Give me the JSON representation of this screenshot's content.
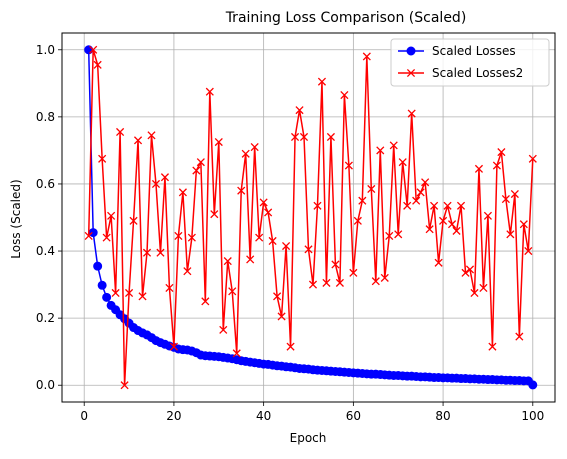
{
  "chart_data": {
    "type": "line",
    "title": "Training Loss Comparison (Scaled)",
    "xlabel": "Epoch",
    "ylabel": "Loss (Scaled)",
    "xlim": [
      -4.95,
      104.95
    ],
    "ylim": [
      -0.05,
      1.05
    ],
    "xticks": [
      0,
      20,
      40,
      60,
      80,
      100
    ],
    "yticks": [
      0.0,
      0.2,
      0.4,
      0.6,
      0.8,
      1.0
    ],
    "grid": true,
    "legend_position": "top-right",
    "series": [
      {
        "name": "Scaled Losses",
        "color": "#0000ff",
        "marker": "circle",
        "x": [
          1,
          2,
          3,
          4,
          5,
          6,
          7,
          8,
          9,
          10,
          11,
          12,
          13,
          14,
          15,
          16,
          17,
          18,
          19,
          20,
          21,
          22,
          23,
          24,
          25,
          26,
          27,
          28,
          29,
          30,
          31,
          32,
          33,
          34,
          35,
          36,
          37,
          38,
          39,
          40,
          41,
          42,
          43,
          44,
          45,
          46,
          47,
          48,
          49,
          50,
          51,
          52,
          53,
          54,
          55,
          56,
          57,
          58,
          59,
          60,
          61,
          62,
          63,
          64,
          65,
          66,
          67,
          68,
          69,
          70,
          71,
          72,
          73,
          74,
          75,
          76,
          77,
          78,
          79,
          80,
          81,
          82,
          83,
          84,
          85,
          86,
          87,
          88,
          89,
          90,
          91,
          92,
          93,
          94,
          95,
          96,
          97,
          98,
          99,
          100
        ],
        "values": [
          1.0,
          0.455,
          0.355,
          0.298,
          0.262,
          0.238,
          0.225,
          0.21,
          0.198,
          0.185,
          0.172,
          0.163,
          0.156,
          0.15,
          0.142,
          0.133,
          0.127,
          0.122,
          0.117,
          0.113,
          0.108,
          0.106,
          0.105,
          0.102,
          0.097,
          0.09,
          0.088,
          0.087,
          0.086,
          0.085,
          0.083,
          0.081,
          0.079,
          0.076,
          0.073,
          0.071,
          0.069,
          0.067,
          0.065,
          0.063,
          0.062,
          0.06,
          0.058,
          0.057,
          0.055,
          0.054,
          0.052,
          0.05,
          0.049,
          0.048,
          0.046,
          0.045,
          0.044,
          0.043,
          0.042,
          0.041,
          0.04,
          0.039,
          0.038,
          0.037,
          0.036,
          0.035,
          0.034,
          0.033,
          0.033,
          0.032,
          0.031,
          0.03,
          0.029,
          0.029,
          0.028,
          0.027,
          0.027,
          0.026,
          0.025,
          0.025,
          0.024,
          0.023,
          0.023,
          0.022,
          0.022,
          0.021,
          0.021,
          0.02,
          0.02,
          0.019,
          0.019,
          0.018,
          0.018,
          0.017,
          0.017,
          0.016,
          0.016,
          0.015,
          0.015,
          0.014,
          0.014,
          0.013,
          0.013,
          0.001
        ]
      },
      {
        "name": "Scaled Losses2",
        "color": "#ff0000",
        "marker": "x",
        "x": [
          1,
          2,
          3,
          4,
          5,
          6,
          7,
          8,
          9,
          10,
          11,
          12,
          13,
          14,
          15,
          16,
          17,
          18,
          19,
          20,
          21,
          22,
          23,
          24,
          25,
          26,
          27,
          28,
          29,
          30,
          31,
          32,
          33,
          34,
          35,
          36,
          37,
          38,
          39,
          40,
          41,
          42,
          43,
          44,
          45,
          46,
          47,
          48,
          49,
          50,
          51,
          52,
          53,
          54,
          55,
          56,
          57,
          58,
          59,
          60,
          61,
          62,
          63,
          64,
          65,
          66,
          67,
          68,
          69,
          70,
          71,
          72,
          73,
          74,
          75,
          76,
          77,
          78,
          79,
          80,
          81,
          82,
          83,
          84,
          85,
          86,
          87,
          88,
          89,
          90,
          91,
          92,
          93,
          94,
          95,
          96,
          97,
          98,
          99,
          100
        ],
        "values": [
          0.445,
          1.0,
          0.955,
          0.675,
          0.44,
          0.505,
          0.275,
          0.755,
          0.0,
          0.275,
          0.49,
          0.73,
          0.265,
          0.395,
          0.745,
          0.6,
          0.395,
          0.62,
          0.29,
          0.115,
          0.445,
          0.575,
          0.34,
          0.44,
          0.64,
          0.665,
          0.25,
          0.875,
          0.51,
          0.725,
          0.165,
          0.37,
          0.28,
          0.095,
          0.58,
          0.69,
          0.375,
          0.71,
          0.44,
          0.545,
          0.515,
          0.43,
          0.265,
          0.205,
          0.415,
          0.115,
          0.74,
          0.82,
          0.74,
          0.405,
          0.3,
          0.535,
          0.905,
          0.305,
          0.74,
          0.36,
          0.305,
          0.865,
          0.655,
          0.335,
          0.49,
          0.55,
          0.98,
          0.585,
          0.31,
          0.7,
          0.32,
          0.445,
          0.715,
          0.45,
          0.665,
          0.535,
          0.81,
          0.55,
          0.575,
          0.605,
          0.465,
          0.535,
          0.365,
          0.49,
          0.535,
          0.48,
          0.46,
          0.535,
          0.335,
          0.345,
          0.275,
          0.645,
          0.29,
          0.505,
          0.115,
          0.655,
          0.695,
          0.555,
          0.45,
          0.57,
          0.145,
          0.48,
          0.4,
          0.675
        ]
      }
    ]
  }
}
